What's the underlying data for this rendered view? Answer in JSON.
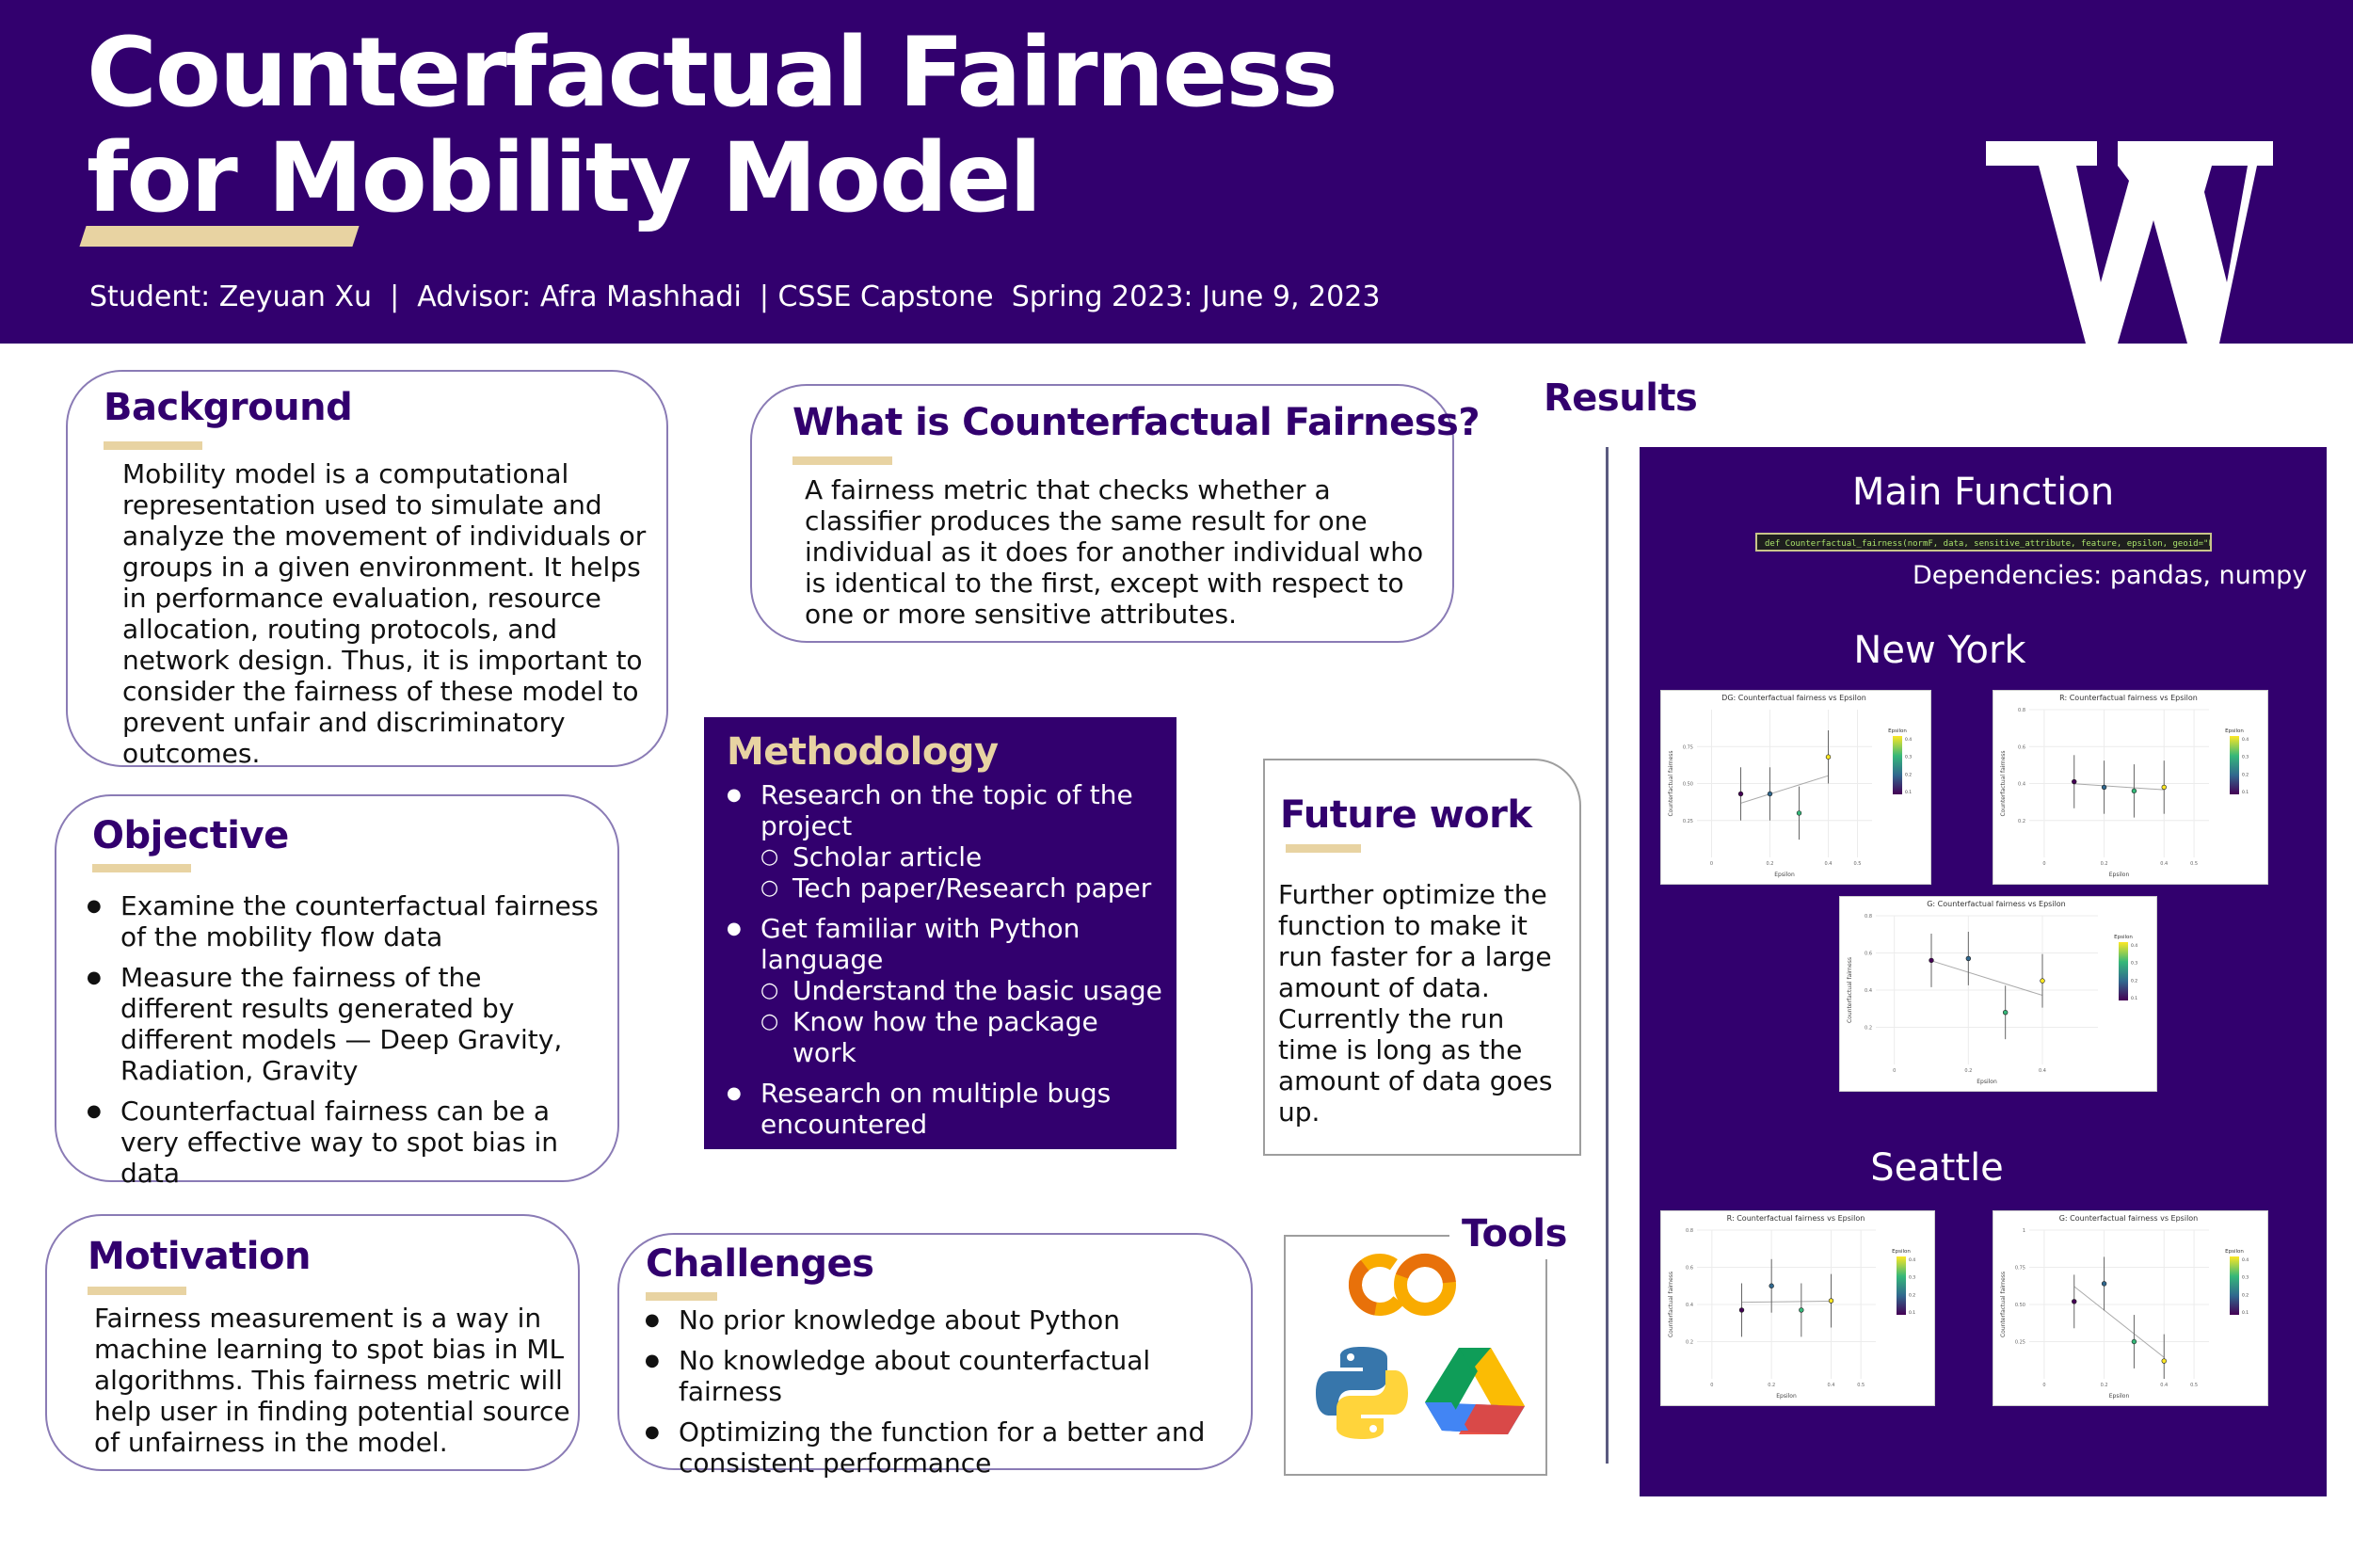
{
  "header": {
    "title_line1": "Counterfactual Fairness",
    "title_line2": "for Mobility Model",
    "subtitle": "Student: Zeyuan Xu  |  Advisor: Afra Mashhadi  | CSSE Capstone  Spring 2023: June 9, 2023",
    "logo_letter": "W",
    "colors": {
      "purple": "#32006e",
      "gold": "#e8d3a2"
    }
  },
  "background": {
    "heading": "Background",
    "text": "Mobility model is a computational representation used to simulate and analyze the movement of individuals or groups in a given environment. It helps in performance evaluation, resource allocation, routing protocols, and network design. Thus, it is important to consider the fairness of these model to prevent unfair and discriminatory outcomes."
  },
  "what_is": {
    "heading": "What is Counterfactual Fairness?",
    "text": "A fairness metric that checks whether a classifier produces the same result for one individual as it does for another individual who is identical to the first, except with respect to one or more sensitive attributes."
  },
  "objective": {
    "heading": "Objective",
    "items": [
      "Examine the counterfactual fairness of the mobility flow data",
      "Measure the fairness of the different results generated by different models — Deep Gravity, Radiation, Gravity",
      "Counterfactual fairness can be a very effective way to spot bias in data"
    ]
  },
  "methodology": {
    "heading": "Methodology",
    "item1": "Research on the topic of the project",
    "item1_sub": [
      "Scholar article",
      "Tech paper/Research paper"
    ],
    "item2": "Get familiar with Python language",
    "item2_sub": [
      "Understand the basic usage",
      "Know how the package work"
    ],
    "item3": "Research on multiple bugs encountered"
  },
  "future_work": {
    "heading": "Future work",
    "text": "Further optimize the function to make it run faster for a large amount of data. Currently the run time is long as the amount of data goes up."
  },
  "motivation": {
    "heading": "Motivation",
    "text": "Fairness measurement is a way in machine learning to spot bias in ML algorithms. This fairness metric will help user in finding potential source of unfairness in the model."
  },
  "challenges": {
    "heading": "Challenges",
    "items": [
      "No prior knowledge about Python",
      "No knowledge about counterfactual fairness",
      "Optimizing the function for a better and consistent performance"
    ]
  },
  "tools": {
    "heading": "Tools",
    "icons": [
      "colab-icon",
      "python-icon",
      "google-drive-icon"
    ],
    "colab_text": "CO"
  },
  "results": {
    "heading": "Results",
    "main_function": "Main Function",
    "code": "def Counterfactual_fairness(normF, data, sensitive_attribute, feature, epsilon, geoid=\"FIPS\"):",
    "dependencies": "Dependencies: pandas, numpy",
    "new_york": "New York",
    "seattle": "Seattle"
  },
  "chart_data": [
    {
      "type": "scatter",
      "title": "DG: Counterfactual fairness vs Epsilon",
      "xlabel": "Epsilon",
      "ylabel": "Counterfactual fairness",
      "xlim": [
        -0.05,
        0.55
      ],
      "ylim": [
        0,
        1.0
      ],
      "x_ticks": [
        "0",
        "0.2",
        "0.4",
        "0.5"
      ],
      "y_ticks": [
        "0.25",
        "0.50",
        "0.75"
      ],
      "x": [
        0.1,
        0.2,
        0.3,
        0.4
      ],
      "y": [
        0.43,
        0.43,
        0.3,
        0.68
      ],
      "legend_title": "Epsilon",
      "legend_ticks": [
        "0.4",
        "0.3",
        "0.2",
        "0.1"
      ]
    },
    {
      "type": "scatter",
      "title": "R: Counterfactual fairness vs Epsilon",
      "xlabel": "Epsilon",
      "ylabel": "Counterfactual fairness",
      "xlim": [
        -0.05,
        0.55
      ],
      "ylim": [
        0,
        0.8
      ],
      "x_ticks": [
        "0",
        "0.2",
        "0.4",
        "0.5"
      ],
      "y_ticks": [
        "0.2",
        "0.4",
        "0.6",
        "0.8"
      ],
      "x": [
        0.1,
        0.2,
        0.3,
        0.4
      ],
      "y": [
        0.41,
        0.38,
        0.36,
        0.38
      ],
      "legend_title": "Epsilon",
      "legend_ticks": [
        "0.4",
        "0.3",
        "0.2",
        "0.1"
      ]
    },
    {
      "type": "scatter",
      "title": "G: Counterfactual fairness vs Epsilon",
      "xlabel": "Epsilon",
      "ylabel": "Counterfactual fairness",
      "xlim": [
        -0.05,
        0.55
      ],
      "ylim": [
        0,
        0.8
      ],
      "x_ticks": [
        "0",
        "0.2",
        "0.4"
      ],
      "y_ticks": [
        "0.2",
        "0.4",
        "0.6",
        "0.8"
      ],
      "x": [
        0.1,
        0.2,
        0.3,
        0.4
      ],
      "y": [
        0.56,
        0.57,
        0.28,
        0.45
      ],
      "legend_title": "Epsilon",
      "legend_ticks": [
        "0.4",
        "0.3",
        "0.2",
        "0.1"
      ]
    },
    {
      "type": "scatter",
      "title": "R: Counterfactual fairness vs Epsilon",
      "xlabel": "Epsilon",
      "ylabel": "Counterfactual fairness",
      "xlim": [
        -0.05,
        0.55
      ],
      "ylim": [
        0,
        0.8
      ],
      "x_ticks": [
        "0",
        "0.2",
        "0.4",
        "0.5"
      ],
      "y_ticks": [
        "0.2",
        "0.4",
        "0.6",
        "0.8"
      ],
      "x": [
        0.1,
        0.2,
        0.3,
        0.4
      ],
      "y": [
        0.37,
        0.5,
        0.37,
        0.42
      ],
      "legend_title": "Epsilon",
      "legend_ticks": [
        "0.4",
        "0.3",
        "0.2",
        "0.1"
      ]
    },
    {
      "type": "scatter",
      "title": "G: Counterfactual fairness vs Epsilon",
      "xlabel": "Epsilon",
      "ylabel": "Counterfactual fairness",
      "xlim": [
        -0.05,
        0.55
      ],
      "ylim": [
        0,
        1.0
      ],
      "x_ticks": [
        "0",
        "0.2",
        "0.4",
        "0.5"
      ],
      "y_ticks": [
        "0.25",
        "0.50",
        "0.75",
        "1"
      ],
      "x": [
        0.1,
        0.2,
        0.3,
        0.4
      ],
      "y": [
        0.52,
        0.64,
        0.25,
        0.12
      ],
      "legend_title": "Epsilon",
      "legend_ticks": [
        "0.4",
        "0.3",
        "0.2",
        "0.1"
      ]
    }
  ]
}
